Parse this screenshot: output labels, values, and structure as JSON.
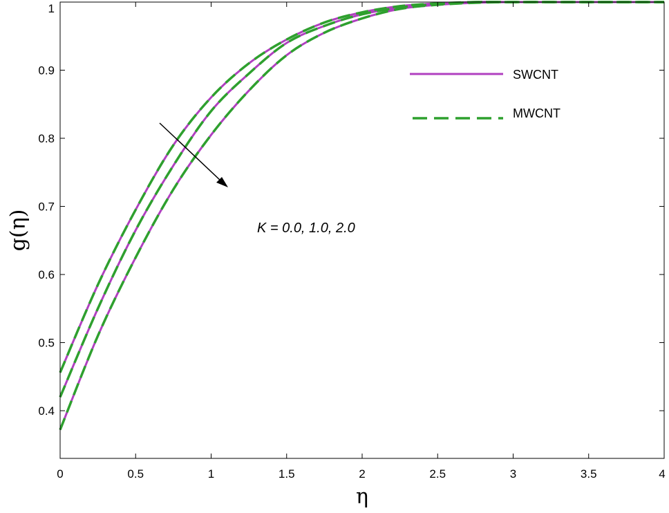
{
  "chart_data": {
    "type": "line",
    "title": "",
    "xlabel": "η",
    "ylabel": "g(η)",
    "xlim": [
      0,
      4
    ],
    "ylim": [
      0.33,
      1.0
    ],
    "xticks": [
      0,
      0.5,
      1,
      1.5,
      2,
      2.5,
      3,
      3.5,
      4
    ],
    "xtick_labels": [
      "0",
      "0.5",
      "1",
      "1.5",
      "2",
      "2.5",
      "3",
      "3.5",
      "4"
    ],
    "yticks": [
      0.4,
      0.5,
      0.6,
      0.7,
      0.8,
      0.9,
      1.0
    ],
    "ytick_labels": [
      "0.4",
      "0.5",
      "0.6",
      "0.7",
      "0.8",
      "0.9",
      "1"
    ],
    "grid": false,
    "legend_position": "top-right",
    "legend": [
      {
        "label": "SWCNT",
        "color": "#b040c0",
        "style": "solid"
      },
      {
        "label": "MWCNT",
        "color": "#2ea02e",
        "style": "dashed"
      }
    ],
    "annotation": {
      "text": "K = 0.0, 1.0, 2.0",
      "arrow": "direction of increasing K"
    },
    "x": [
      0,
      0.25,
      0.5,
      0.75,
      1.0,
      1.25,
      1.5,
      1.75,
      2.0,
      2.25,
      2.5,
      2.75,
      3.0,
      3.5,
      4.0
    ],
    "series": [
      {
        "label": "SWCNT",
        "values": [
          0.456,
          0.585,
          0.695,
          0.79,
          0.86,
          0.91,
          0.945,
          0.97,
          0.985,
          0.994,
          0.998,
          1.0,
          1.0,
          1.0,
          1.0
        ]
      },
      {
        "label": "SWCNT",
        "values": [
          0.42,
          0.55,
          0.665,
          0.76,
          0.84,
          0.895,
          0.94,
          0.965,
          0.982,
          0.992,
          0.997,
          1.0,
          1.0,
          1.0,
          1.0
        ]
      },
      {
        "label": "SWCNT",
        "values": [
          0.372,
          0.51,
          0.625,
          0.725,
          0.805,
          0.87,
          0.922,
          0.955,
          0.976,
          0.99,
          0.996,
          0.999,
          1.0,
          1.0,
          1.0
        ]
      },
      {
        "label": "MWCNT",
        "values": [
          0.456,
          0.585,
          0.695,
          0.79,
          0.86,
          0.91,
          0.945,
          0.97,
          0.985,
          0.994,
          0.998,
          1.0,
          1.0,
          1.0,
          1.0
        ]
      },
      {
        "label": "MWCNT",
        "values": [
          0.42,
          0.55,
          0.665,
          0.76,
          0.84,
          0.895,
          0.94,
          0.965,
          0.982,
          0.992,
          0.997,
          1.0,
          1.0,
          1.0,
          1.0
        ]
      },
      {
        "label": "MWCNT",
        "values": [
          0.372,
          0.51,
          0.625,
          0.725,
          0.805,
          0.87,
          0.922,
          0.955,
          0.976,
          0.99,
          0.996,
          0.999,
          1.0,
          1.0,
          1.0
        ]
      }
    ]
  }
}
